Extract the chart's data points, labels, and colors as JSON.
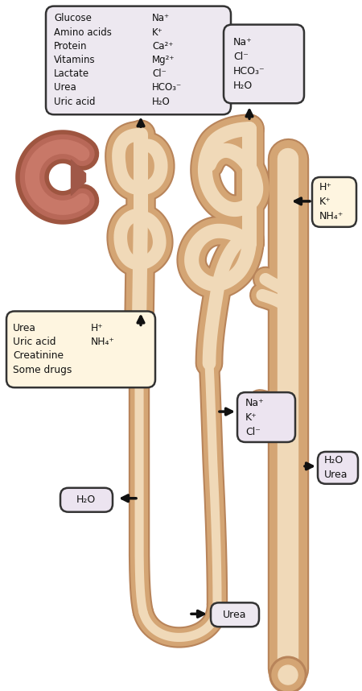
{
  "bg_color": "#ffffff",
  "tubule_color": "#d4a574",
  "tubule_edge_color": "#b8845a",
  "tubule_lumen_color": "#f0d9b8",
  "glom_outer_color": "#b87060",
  "glom_inner_color": "#c88070",
  "box_lavender_bg": "#ede8f0",
  "box_lavender_edge": "#333333",
  "box_cream_bg": "#fef5e0",
  "box_cream_edge": "#333333",
  "box_lilac_bg": "#ece4f0",
  "box_lilac_edge": "#333333",
  "arrow_color": "#111111",
  "text_color": "#111111",
  "box1_left": [
    "Glucose",
    "Amino acids",
    "Protein",
    "Vitamins",
    "Lactate",
    "Urea",
    "Uric acid"
  ],
  "box1_right": [
    "Na⁺",
    "K⁺",
    "Ca²⁺",
    "Mg²⁺",
    "Cl⁻",
    "HCO₃⁻",
    "H₂O"
  ],
  "box2_lines": [
    "Na⁺",
    "Cl⁻",
    "HCO₃⁻",
    "H₂O"
  ],
  "box3_lines": [
    "H⁺",
    "K⁺",
    "NH₄⁺"
  ],
  "box4_left": [
    "Urea",
    "Uric acid",
    "Creatinine",
    "Some drugs"
  ],
  "box4_right": [
    "H⁺",
    "NH₄⁺",
    "",
    ""
  ],
  "box5_lines": [
    "Na⁺",
    "K⁺",
    "Cl⁻"
  ],
  "box6_lines": [
    "H₂O"
  ],
  "box7_lines": [
    "Urea"
  ],
  "box8_lines": [
    "H₂O",
    "Urea"
  ]
}
